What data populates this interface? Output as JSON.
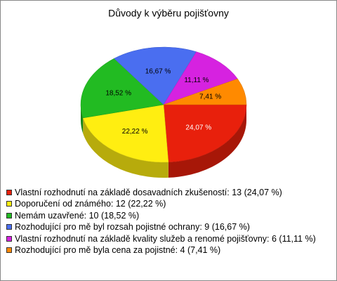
{
  "chart_data": {
    "type": "pie",
    "title": "Důvody k výběru pojišťovny",
    "categories": [
      "Vlastní rozhodnutí na základě dosavadních zkušeností: 13 (24,07 %)",
      "Doporučení od známého: 12 (22,22 %)",
      "Nemám uzavřené: 10 (18,52 %)",
      "Rozhodující pro mě byl rozsah pojistné ochrany: 9 (16,67 %)",
      "Vlastní rozhodnutí na základě kvality služeb a renomé pojišťovny: 6 (11,11 %)",
      "Rozhodující pro mě byla cena za pojistné: 4 (7,41 %)"
    ],
    "values": [
      13,
      12,
      10,
      9,
      6,
      4
    ],
    "value_labels": [
      "24,07 %",
      "22,22 %",
      "18,52 %",
      "16,67 %",
      "11,11 %",
      "7,41 %"
    ],
    "colors": [
      "#e8200c",
      "#ffee11",
      "#22bb22",
      "#4a6ef0",
      "#d622e0",
      "#ff8a00"
    ],
    "legend": "bottom"
  }
}
